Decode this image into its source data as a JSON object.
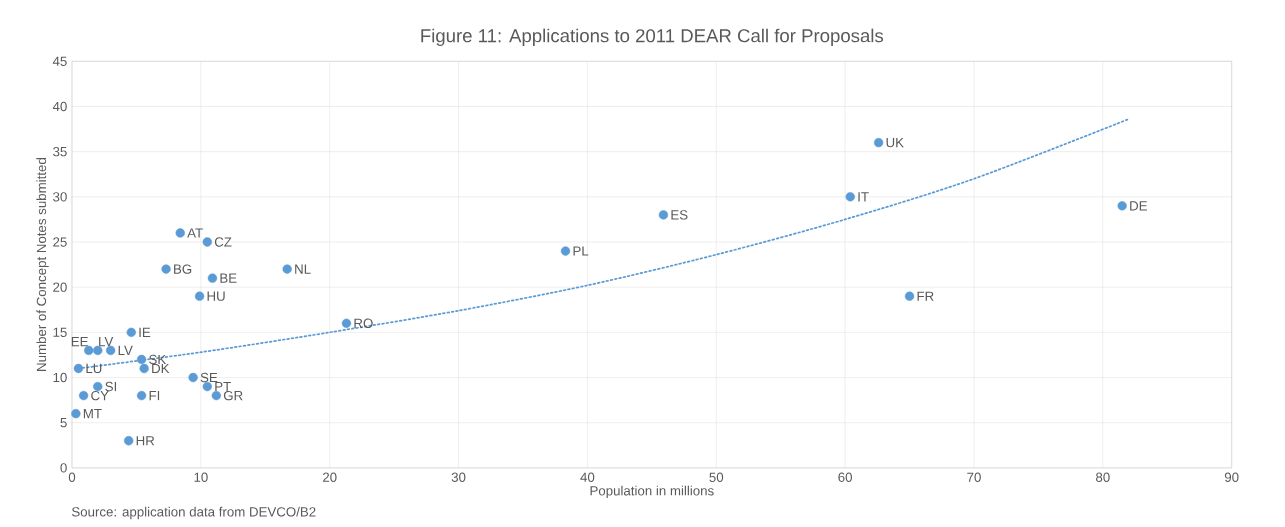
{
  "chart_data": {
    "type": "scatter",
    "title": "Figure 11: Applications to 2011 DEAR Call for Proposals",
    "xlabel": "Population in millions",
    "ylabel": "Number of Concept Notes submitted",
    "xlim": [
      0,
      90
    ],
    "xticks": [
      0,
      10,
      20,
      30,
      40,
      50,
      60,
      70,
      80,
      90
    ],
    "ylim": [
      0,
      45
    ],
    "yticks": [
      0,
      5,
      10,
      15,
      20,
      25,
      30,
      35,
      40,
      45
    ],
    "grid": true,
    "marker": "circle",
    "series": [
      {
        "color": "#5b9bd5",
        "x": [
          8.4,
          10.5,
          7.3,
          10.9,
          16.7,
          9.9,
          21.3,
          4.6,
          1.3,
          2.0,
          3.0,
          5.4,
          0.5,
          5.6,
          9.4,
          10.5,
          2.0,
          0.9,
          5.4,
          11.2,
          0.3,
          4.4,
          38.3,
          45.9,
          60.4,
          62.6,
          65.0,
          81.5
        ],
        "values": [
          26,
          25,
          22,
          21,
          22,
          19,
          16,
          15,
          13,
          13,
          13,
          12,
          11,
          11,
          10,
          9,
          9,
          8,
          8,
          8,
          6,
          3,
          24,
          28,
          30,
          36,
          19,
          29
        ]
      },
      {
        "type": "line",
        "color": "#5b9bd5",
        "line_style": "dotted",
        "marker": "none",
        "x": [
          0.5,
          10,
          20,
          30,
          40,
          50,
          60,
          70,
          82
        ],
        "values": [
          11.0,
          12.8,
          15.0,
          17.4,
          20.2,
          23.6,
          27.5,
          32.0,
          38.6
        ]
      }
    ],
    "annotations": [
      {
        "text": "AT",
        "x": 8.4,
        "y": 26
      },
      {
        "text": "CZ",
        "x": 10.5,
        "y": 25
      },
      {
        "text": "BG",
        "x": 7.3,
        "y": 22
      },
      {
        "text": "BE",
        "x": 10.9,
        "y": 21
      },
      {
        "text": "NL",
        "x": 16.7,
        "y": 22
      },
      {
        "text": "HU",
        "x": 9.9,
        "y": 19
      },
      {
        "text": "RO",
        "x": 21.3,
        "y": 16
      },
      {
        "text": "IE",
        "x": 4.6,
        "y": 15
      },
      {
        "text": "EE",
        "x": 1.3,
        "y": 13
      },
      {
        "text": "LV",
        "x": 2.0,
        "y": 13
      },
      {
        "text": "LV",
        "x": 3.0,
        "y": 13
      },
      {
        "text": "SK",
        "x": 5.4,
        "y": 12
      },
      {
        "text": "LU",
        "x": 0.5,
        "y": 11
      },
      {
        "text": "DK",
        "x": 5.6,
        "y": 11
      },
      {
        "text": "SE",
        "x": 9.4,
        "y": 10
      },
      {
        "text": "PT",
        "x": 10.5,
        "y": 9
      },
      {
        "text": "SI",
        "x": 2.0,
        "y": 9
      },
      {
        "text": "CY",
        "x": 0.9,
        "y": 8
      },
      {
        "text": "FI",
        "x": 5.4,
        "y": 8
      },
      {
        "text": "GR",
        "x": 11.2,
        "y": 8
      },
      {
        "text": "MT",
        "x": 0.3,
        "y": 6
      },
      {
        "text": "HR",
        "x": 4.4,
        "y": 3
      },
      {
        "text": "PL",
        "x": 38.3,
        "y": 24
      },
      {
        "text": "ES",
        "x": 45.9,
        "y": 28
      },
      {
        "text": "IT",
        "x": 60.4,
        "y": 30
      },
      {
        "text": "UK",
        "x": 62.6,
        "y": 36
      },
      {
        "text": "FR",
        "x": 65.0,
        "y": 19
      },
      {
        "text": "DE",
        "x": 81.5,
        "y": 29
      },
      "Source: application data from DEVCO/B2"
    ]
  }
}
